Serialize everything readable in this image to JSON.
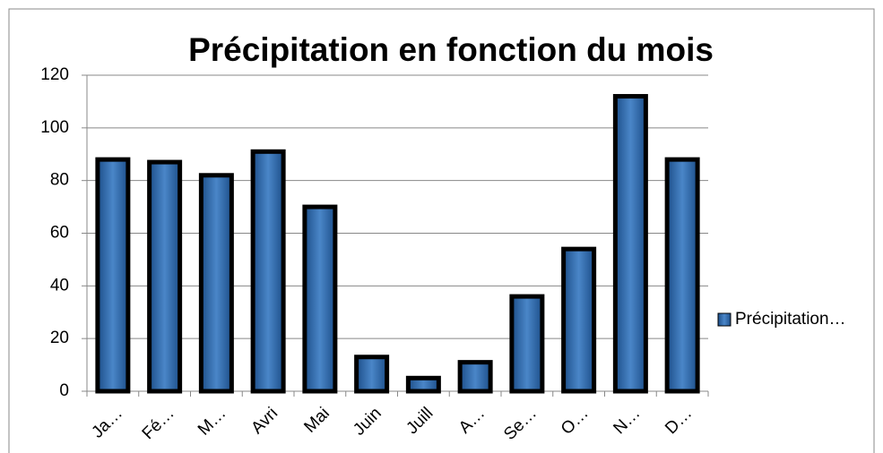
{
  "chart_data": {
    "type": "bar",
    "title": "Précipitation en fonction du mois",
    "categories": [
      "Ja…",
      "Fé…",
      "M…",
      "Avri",
      "Mai",
      "Juin",
      "Juill",
      "A…",
      "Se…",
      "O…",
      "N…",
      "D…"
    ],
    "series": [
      {
        "name": "Précipitation…",
        "color": "#4a86c8",
        "values": [
          88,
          87,
          82,
          91,
          70,
          13,
          5,
          11,
          36,
          54,
          112,
          88
        ]
      }
    ],
    "ylim": [
      0,
      120
    ],
    "yticks": [
      0,
      20,
      40,
      60,
      80,
      100,
      120
    ],
    "grid": true,
    "legend": "right"
  }
}
